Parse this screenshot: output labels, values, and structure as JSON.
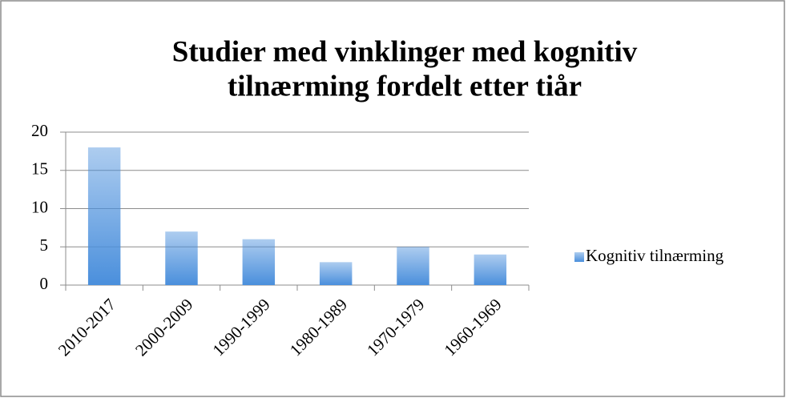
{
  "chart_data": {
    "type": "bar",
    "title": [
      "Studier med vinklinger med kognitiv",
      "tilnærming fordelt etter tiår"
    ],
    "categories": [
      "2010-2017",
      "2000-2009",
      "1990-1999",
      "1980-1989",
      "1970-1979",
      "1960-1969"
    ],
    "series": [
      {
        "name": "Kognitiv tilnærming",
        "color": "#4a8fdc",
        "values": [
          18,
          7,
          6,
          3,
          5,
          4
        ]
      }
    ],
    "ylim": [
      0,
      20
    ],
    "yticks": [
      0,
      5,
      10,
      15,
      20
    ],
    "grid": true,
    "legend": "right"
  }
}
